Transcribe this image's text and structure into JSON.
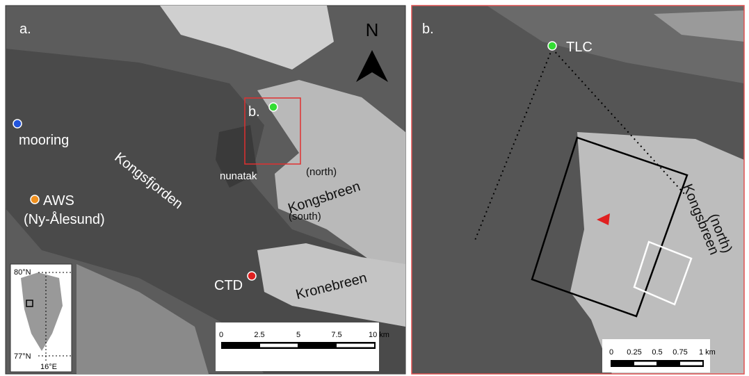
{
  "panel_a": {
    "label": "a.",
    "north": "N",
    "mooring": "mooring",
    "fjord": "Kongsfjorden",
    "aws": "AWS",
    "aws_place": "(Ny-Ålesund)",
    "box_label": "b.",
    "nunatak": "nunatak",
    "kongsbreen_north": "(north)",
    "kongsbreen": "Kongsbreen",
    "kongsbreen_south": "(south)",
    "ctd": "CTD",
    "kronebreen": "Kronebreen",
    "scale_bar": [
      "0",
      "2.5",
      "5",
      "7.5",
      "10 km"
    ],
    "inset": {
      "lat_top": "80°N",
      "lat_bottom": "77°N",
      "lon": "16°E"
    }
  },
  "panel_b": {
    "label": "b.",
    "tlc": "TLC",
    "glacier": "Kongsbreen",
    "glacier_part": "(north)",
    "scale_bar": [
      "0",
      "0.25",
      "0.5",
      "0.75",
      "1 km"
    ]
  }
}
